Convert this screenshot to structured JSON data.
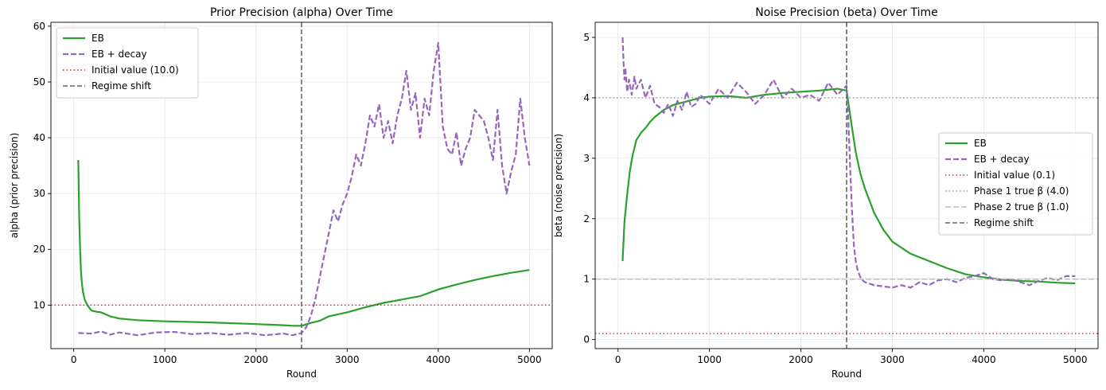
{
  "chart_data": [
    {
      "type": "line",
      "title": "Prior Precision (alpha) Over Time",
      "xlabel": "Round",
      "ylabel": "alpha (prior precision)",
      "xlim": [
        -250,
        5250
      ],
      "ylim": [
        2.2,
        60.7
      ],
      "xticks": [
        0,
        1000,
        2000,
        3000,
        4000,
        5000
      ],
      "yticks": [
        10,
        20,
        30,
        40,
        50,
        60
      ],
      "grid": true,
      "legend_position": "upper left",
      "series": [
        {
          "name": "EB",
          "color": "#2ca02c",
          "style": "solid",
          "x": [
            50,
            60,
            70,
            80,
            90,
            100,
            120,
            150,
            180,
            200,
            250,
            300,
            400,
            500,
            700,
            1000,
            1500,
            2000,
            2300,
            2400,
            2500,
            2600,
            2700,
            2800,
            3000,
            3200,
            3400,
            3600,
            3800,
            4000,
            4200,
            4400,
            4600,
            4800,
            5000
          ],
          "y": [
            36,
            26,
            20,
            16,
            14,
            12.5,
            11,
            10,
            9.3,
            9,
            8.8,
            8.7,
            8,
            7.6,
            7.3,
            7.1,
            6.9,
            6.6,
            6.4,
            6.3,
            6.3,
            6.8,
            7.2,
            8,
            8.7,
            9.6,
            10.4,
            11,
            11.6,
            12.8,
            13.7,
            14.5,
            15.2,
            15.8,
            16.3
          ]
        },
        {
          "name": "EB + decay",
          "color": "#9467bd",
          "style": "dashed",
          "x": [
            50,
            200,
            300,
            400,
            500,
            700,
            900,
            1100,
            1300,
            1500,
            1700,
            1900,
            2100,
            2300,
            2400,
            2500,
            2550,
            2600,
            2650,
            2700,
            2750,
            2800,
            2850,
            2900,
            2950,
            3000,
            3050,
            3100,
            3150,
            3200,
            3250,
            3300,
            3350,
            3400,
            3450,
            3500,
            3550,
            3600,
            3650,
            3700,
            3750,
            3800,
            3850,
            3900,
            3950,
            4000,
            4050,
            4100,
            4150,
            4200,
            4250,
            4300,
            4350,
            4400,
            4450,
            4500,
            4550,
            4600,
            4650,
            4700,
            4750,
            4800,
            4850,
            4900,
            4950,
            5000
          ],
          "y": [
            5,
            4.9,
            5.3,
            4.7,
            5.1,
            4.6,
            5.1,
            5.2,
            4.8,
            5.0,
            4.7,
            5.0,
            4.6,
            4.9,
            4.6,
            5.0,
            6,
            8,
            11,
            15,
            19,
            23,
            27,
            25,
            28,
            30,
            33,
            37,
            35,
            39,
            44,
            42,
            46,
            40,
            43,
            39,
            44,
            47,
            52,
            45,
            48,
            40,
            47,
            44,
            52,
            57,
            42,
            38,
            37,
            41,
            35,
            38,
            40,
            45,
            44,
            43,
            40,
            36,
            45,
            35,
            30,
            34,
            37,
            47,
            40,
            35
          ]
        },
        {
          "name": "Initial value (10.0)",
          "color": "#d62728",
          "style": "dotted",
          "y_const": 10.0
        },
        {
          "name": "Regime shift",
          "color": "#666666",
          "style": "dashed-vertical",
          "x_const": 2500
        }
      ]
    },
    {
      "type": "line",
      "title": "Noise Precision (beta) Over Time",
      "xlabel": "Round",
      "ylabel": "beta (noise precision)",
      "xlim": [
        -250,
        5250
      ],
      "ylim": [
        -0.15,
        5.25
      ],
      "xticks": [
        0,
        1000,
        2000,
        3000,
        4000,
        5000
      ],
      "yticks": [
        0,
        1,
        2,
        3,
        4,
        5
      ],
      "grid": true,
      "legend_position": "center right",
      "series": [
        {
          "name": "EB",
          "color": "#2ca02c",
          "style": "solid",
          "x": [
            50,
            70,
            100,
            130,
            160,
            200,
            250,
            300,
            350,
            400,
            500,
            600,
            700,
            800,
            900,
            1000,
            1200,
            1400,
            1600,
            1800,
            2000,
            2200,
            2400,
            2500,
            2550,
            2600,
            2650,
            2700,
            2800,
            2900,
            3000,
            3200,
            3400,
            3600,
            3800,
            4000,
            4200,
            4400,
            4600,
            4800,
            5000
          ],
          "y": [
            1.3,
            1.95,
            2.4,
            2.8,
            3.05,
            3.3,
            3.42,
            3.5,
            3.6,
            3.68,
            3.8,
            3.88,
            3.92,
            3.96,
            4.0,
            4.02,
            4.03,
            4.0,
            4.05,
            4.08,
            4.1,
            4.12,
            4.15,
            4.12,
            3.6,
            3.1,
            2.75,
            2.5,
            2.1,
            1.82,
            1.62,
            1.42,
            1.3,
            1.18,
            1.08,
            1.03,
            0.99,
            0.97,
            0.96,
            0.94,
            0.93
          ]
        },
        {
          "name": "EB + decay",
          "color": "#9467bd",
          "style": "dashed",
          "x": [
            50,
            60,
            70,
            80,
            100,
            120,
            150,
            180,
            200,
            250,
            300,
            350,
            400,
            450,
            500,
            550,
            600,
            650,
            700,
            750,
            800,
            850,
            900,
            1000,
            1100,
            1200,
            1300,
            1400,
            1500,
            1600,
            1700,
            1800,
            1900,
            2000,
            2100,
            2200,
            2300,
            2400,
            2500,
            2520,
            2540,
            2560,
            2580,
            2600,
            2620,
            2640,
            2660,
            2700,
            2800,
            2900,
            3000,
            3100,
            3200,
            3300,
            3400,
            3500,
            3600,
            3700,
            3800,
            3900,
            4000,
            4100,
            4200,
            4300,
            4400,
            4500,
            4600,
            4700,
            4800,
            4900,
            5000
          ],
          "y": [
            5.0,
            4.6,
            4.3,
            4.5,
            4.1,
            4.3,
            4.05,
            4.35,
            4.15,
            4.3,
            4.0,
            4.2,
            3.9,
            3.85,
            3.75,
            3.9,
            3.7,
            3.95,
            3.8,
            4.1,
            3.85,
            3.9,
            4.05,
            3.9,
            4.15,
            4.0,
            4.25,
            4.1,
            3.9,
            4.05,
            4.3,
            4.0,
            4.15,
            4.0,
            4.05,
            3.95,
            4.25,
            4.05,
            4.2,
            3.6,
            2.8,
            2.1,
            1.55,
            1.3,
            1.15,
            1.07,
            1.0,
            0.95,
            0.9,
            0.88,
            0.86,
            0.9,
            0.86,
            0.95,
            0.9,
            0.98,
            1.0,
            0.95,
            1.02,
            1.05,
            1.1,
            1.0,
            0.98,
            1.0,
            0.95,
            0.9,
            0.97,
            1.02,
            0.98,
            1.05,
            1.05
          ]
        },
        {
          "name": "Initial value (0.1)",
          "color": "#d62728",
          "style": "dotted",
          "y_const": 0.1
        },
        {
          "name": "Phase 1 true β (4.0)",
          "color": "#999999",
          "style": "dotted",
          "y_const": 4.0
        },
        {
          "name": "Phase 2 true β (1.0)",
          "color": "#bbbbbb",
          "style": "dashed",
          "y_const": 1.0
        },
        {
          "name": "Regime shift",
          "color": "#666666",
          "style": "dashed-vertical",
          "x_const": 2500
        }
      ]
    }
  ]
}
